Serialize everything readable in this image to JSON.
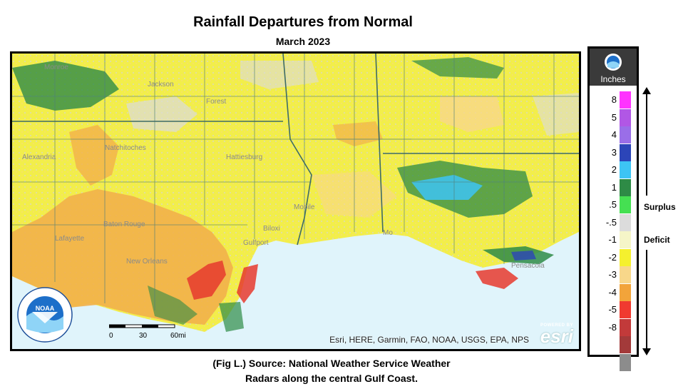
{
  "title": "Rainfall Departures from Normal",
  "subtitle": "March 2023",
  "caption_line1": "(Fig L.) Source: National Weather Service Weather",
  "caption_line2": "Radars along the central Gulf Coast.",
  "map": {
    "attribution": "Esri, HERE, Garmin, FAO, NOAA, USGS, EPA, NPS",
    "esri_powered": "POWERED BY",
    "esri_word": "esri",
    "scale": {
      "labels": [
        "0",
        "30",
        "60mi"
      ]
    },
    "places": [
      "Monroe",
      "Jackson",
      "Forest",
      "Alexandria",
      "Natchitoches",
      "Hattiesburg",
      "Baton Rouge",
      "Lafayette",
      "New Orleans",
      "Gulfport",
      "Biloxi",
      "Mobile",
      "Mo",
      "Pensacola"
    ],
    "colors": {
      "water": "#e0f4fb",
      "land_base": "#f2ee4a",
      "county_line": "#4f7f7a"
    }
  },
  "noaa_logo_text": "NOAA",
  "legend": {
    "header": "Inches",
    "items": [
      {
        "label": "8",
        "color": "#ff33ff"
      },
      {
        "label": "5",
        "color": "#b157e5"
      },
      {
        "label": "4",
        "color": "#9a6ee8"
      },
      {
        "label": "3",
        "color": "#2c45b8"
      },
      {
        "label": "2",
        "color": "#3dc4f4"
      },
      {
        "label": "1",
        "color": "#2e8b46"
      },
      {
        "label": ".5",
        "color": "#45e052"
      },
      {
        "label": "-.5",
        "color": "#dcdcdc"
      },
      {
        "label": "-1",
        "color": "#f5f5c8"
      },
      {
        "label": "-2",
        "color": "#f5f02e"
      },
      {
        "label": "-3",
        "color": "#f8d78a"
      },
      {
        "label": "-4",
        "color": "#f2a43a"
      },
      {
        "label": "-5",
        "color": "#f03a30"
      },
      {
        "label": "-8",
        "color": "#c23a3a"
      },
      {
        "label": "",
        "color": "#a33a3a"
      },
      {
        "label": "",
        "color": "#8c8c8c"
      }
    ],
    "surplus": "Surplus",
    "deficit": "Deficit"
  }
}
